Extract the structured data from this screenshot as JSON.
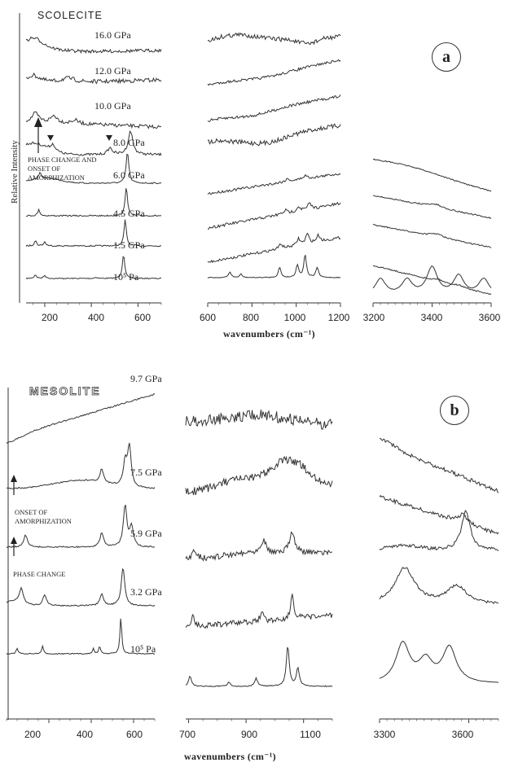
{
  "chart_data": [
    {
      "type": "line",
      "panel": "a",
      "title": "SCOLECITE",
      "ylabel": "Relative Intensity",
      "xlabel": "wavenumbers (cm⁻¹)",
      "y_scale": "stacked offsets (arbitrary units)",
      "series": [
        {
          "name": "16.0 GPa"
        },
        {
          "name": "12.0 GPa"
        },
        {
          "name": "10.0 GPa"
        },
        {
          "name": "8.0 GPa"
        },
        {
          "name": "6.0 GPa"
        },
        {
          "name": "4.5 GPa"
        },
        {
          "name": "1.5 GPa"
        },
        {
          "name": "10⁵ Pa"
        }
      ],
      "segments": [
        {
          "xlim": [
            120,
            700
          ],
          "ticks": [
            "200",
            "400",
            "600"
          ],
          "tick_values": [
            200,
            400,
            600
          ],
          "peaks_ambient": [
            {
              "x": 160,
              "h": 0.15
            },
            {
              "x": 200,
              "h": 0.12
            },
            {
              "x": 420,
              "h": 0.05
            },
            {
              "x": 538,
              "h": 1.0
            }
          ],
          "peaks_8GPa": [
            {
              "x": 235,
              "h": 0.25
            },
            {
              "x": 480,
              "h": 0.25
            },
            {
              "x": 568,
              "h": 0.9
            }
          ]
        },
        {
          "xlim": [
            600,
            1200
          ],
          "ticks": [
            "600",
            "800",
            "1000",
            "1200"
          ],
          "tick_values": [
            600,
            800,
            1000,
            1200
          ],
          "peaks_ambient": [
            {
              "x": 700,
              "h": 0.25
            },
            {
              "x": 750,
              "h": 0.15
            },
            {
              "x": 925,
              "h": 0.45
            },
            {
              "x": 1005,
              "h": 0.55
            },
            {
              "x": 1040,
              "h": 1.0
            },
            {
              "x": 1095,
              "h": 0.45
            }
          ]
        },
        {
          "xlim": [
            3200,
            3600
          ],
          "ticks": [
            "3200",
            "3400",
            "3600"
          ],
          "tick_values": [
            3200,
            3400,
            3600
          ],
          "peaks_ambient": [
            {
              "x": 3225,
              "h": 0.6
            },
            {
              "x": 3315,
              "h": 0.55
            },
            {
              "x": 3400,
              "h": 1.0
            },
            {
              "x": 3490,
              "h": 0.7
            },
            {
              "x": 3575,
              "h": 0.6
            }
          ]
        }
      ],
      "annotations": [
        "PHASE CHANGE AND\nONSET OF\nAMORPHIZATION"
      ],
      "badge": "a"
    },
    {
      "type": "line",
      "panel": "b",
      "title": "MESOLITE",
      "xlabel": "wavenumbers (cm⁻¹)",
      "y_scale": "stacked offsets (arbitrary units)",
      "series": [
        {
          "name": "9.7 GPa"
        },
        {
          "name": "7.5 GPa"
        },
        {
          "name": "5.9 GPa"
        },
        {
          "name": "3.2 GPa"
        },
        {
          "name": "10⁵ Pa"
        }
      ],
      "segments": [
        {
          "xlim": [
            0,
            700
          ],
          "ticks": [
            "200",
            "400",
            "600"
          ],
          "tick_values": [
            200,
            400,
            600
          ],
          "peaks_ambient": [
            {
              "x": 50,
              "h": 0.15
            },
            {
              "x": 170,
              "h": 0.2
            },
            {
              "x": 410,
              "h": 0.15
            },
            {
              "x": 440,
              "h": 0.2
            },
            {
              "x": 540,
              "h": 1.0
            }
          ]
        },
        {
          "xlim": [
            690,
            1200
          ],
          "ticks": [
            "700",
            "900",
            "1100"
          ],
          "tick_values": [
            700,
            900,
            1100
          ],
          "peaks_ambient": [
            {
              "x": 705,
              "h": 0.25
            },
            {
              "x": 840,
              "h": 0.1
            },
            {
              "x": 935,
              "h": 0.2
            },
            {
              "x": 1045,
              "h": 1.0
            },
            {
              "x": 1080,
              "h": 0.45
            }
          ]
        },
        {
          "xlim": [
            3300,
            3700
          ],
          "ticks": [
            "3300",
            "3600"
          ],
          "tick_values": [
            3300,
            3600
          ],
          "peaks_ambient": [
            {
              "x": 3378,
              "h": 1.0
            },
            {
              "x": 3455,
              "h": 0.55
            },
            {
              "x": 3535,
              "h": 0.9
            }
          ]
        }
      ],
      "annotations": [
        "ONSET OF\nAMORPHIZATION",
        "PHASE CHANGE"
      ],
      "badge": "b"
    }
  ]
}
